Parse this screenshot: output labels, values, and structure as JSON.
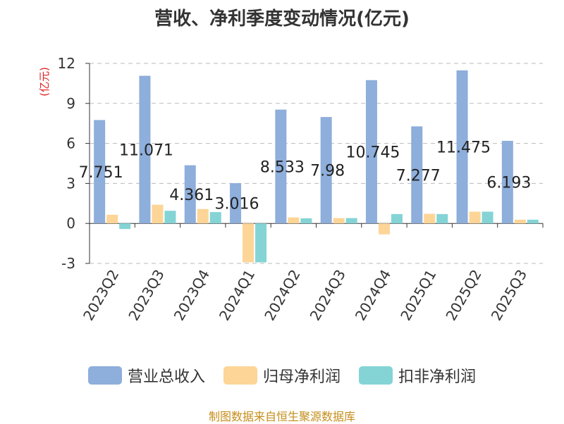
{
  "title": "营收、净利季度变动情况(亿元)",
  "source": "制图数据来自恒生聚源数据库",
  "colors": {
    "revenue": "#8eaedb",
    "net_profit": "#fdd597",
    "deducted_profit": "#84d4d6",
    "unit_label": "#e02020"
  },
  "chart_data": {
    "type": "bar",
    "title": "营收、净利季度变动情况(亿元)",
    "ylabel": "(亿元)",
    "ylim": [
      -3,
      12
    ],
    "yticks": [
      -3,
      0,
      3,
      6,
      9,
      12
    ],
    "grid": true,
    "legend_position": "bottom",
    "categories": [
      "2023Q2",
      "2023Q3",
      "2023Q4",
      "2024Q1",
      "2024Q2",
      "2024Q3",
      "2024Q4",
      "2025Q1",
      "2025Q2",
      "2025Q3"
    ],
    "series": [
      {
        "name": "营业总收入",
        "values": [
          7.751,
          11.071,
          4.361,
          3.016,
          8.533,
          7.98,
          10.745,
          7.277,
          11.475,
          6.193
        ]
      },
      {
        "name": "归母净利润",
        "values": [
          0.65,
          1.4,
          1.08,
          -2.92,
          0.45,
          0.4,
          -0.82,
          0.72,
          0.88,
          0.28
        ]
      },
      {
        "name": "扣非净利润",
        "values": [
          -0.42,
          0.95,
          0.85,
          -2.92,
          0.38,
          0.4,
          0.7,
          0.7,
          0.88,
          0.28
        ]
      }
    ],
    "data_labels": [
      "7.751",
      "11.071",
      "4.361",
      "3.016",
      "8.533",
      "7.98",
      "10.745",
      "7.277",
      "11.475",
      "6.193"
    ]
  }
}
